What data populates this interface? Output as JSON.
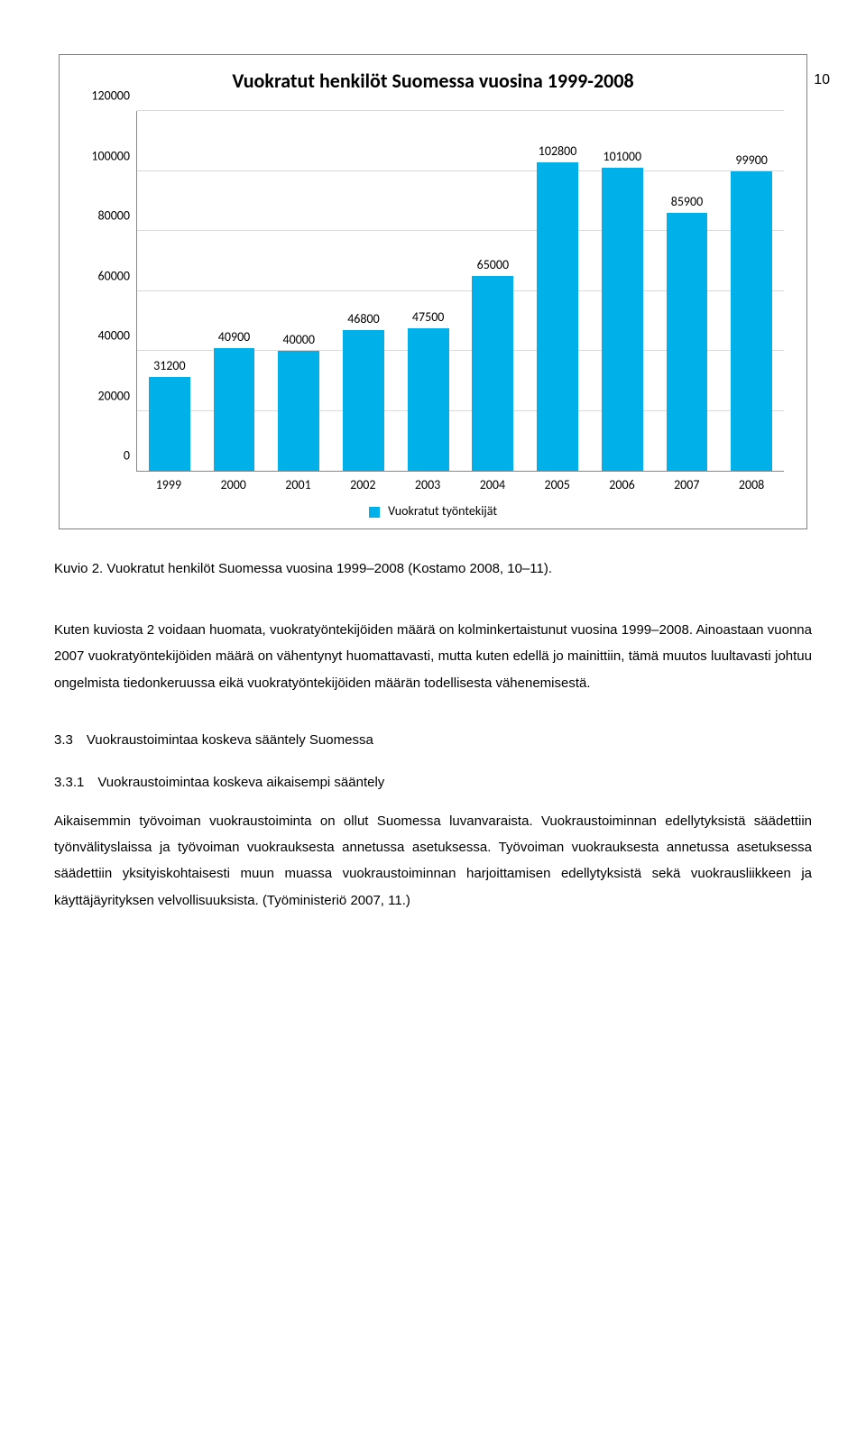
{
  "page_number": "10",
  "chart": {
    "type": "bar",
    "title": "Vuokratut henkilöt Suomessa vuosina 1999-2008",
    "title_fontsize": 22,
    "title_color": "#000000",
    "categories": [
      "1999",
      "2000",
      "2001",
      "2002",
      "2003",
      "2004",
      "2005",
      "2006",
      "2007",
      "2008"
    ],
    "values": [
      31200,
      40900,
      40000,
      46800,
      47500,
      65000,
      102800,
      101000,
      85900,
      99900
    ],
    "data_labels": [
      "31200",
      "40900",
      "40000",
      "46800",
      "47500",
      "65000",
      "102800",
      "101000",
      "85900",
      "99900"
    ],
    "bar_color": "#00b0e8",
    "ylim": [
      0,
      120000
    ],
    "ytick_step": 20000,
    "yticks": [
      "0",
      "20000",
      "40000",
      "60000",
      "80000",
      "100000",
      "120000"
    ],
    "grid_color": "#d9d9d9",
    "tick_fontsize": 14,
    "label_fontsize": 14,
    "bar_width_pct": 64,
    "legend_label": "Vuokratut työntekijät",
    "background_color": "#ffffff",
    "border_color": "#808080"
  },
  "caption": "Kuvio 2. Vuokratut henkilöt Suomessa vuosina 1999–2008 (Kostamo 2008, 10–11).",
  "paragraph1": "Kuten kuviosta 2 voidaan huomata, vuokratyöntekijöiden määrä on kolminkertaistunut vuosina 1999–2008. Ainoastaan vuonna 2007 vuokratyöntekijöiden määrä on vähentynyt huomattavasti, mutta kuten edellä jo mainittiin, tämä muutos luultavasti johtuu ongelmista tiedonkeruussa eikä vuokratyöntekijöiden määrän todellisesta vähenemisestä.",
  "heading_3_3": "3.3 Vuokraustoimintaa koskeva sääntely Suomessa",
  "heading_3_3_1": "3.3.1 Vuokraustoimintaa koskeva aikaisempi sääntely",
  "paragraph2": "Aikaisemmin työvoiman vuokraustoiminta on ollut Suomessa luvanvaraista. Vuokraustoiminnan edellytyksistä säädettiin työnvälityslaissa ja työvoiman vuokrauksesta annetussa asetuksessa. Työvoiman vuokrauksesta annetussa asetuksessa säädettiin yksityiskohtaisesti muun muassa vuokraustoiminnan harjoittamisen edellytyksistä sekä vuokrausliikkeen ja käyttäjäyrityksen velvollisuuksista. (Työministeriö 2007, 11.)"
}
